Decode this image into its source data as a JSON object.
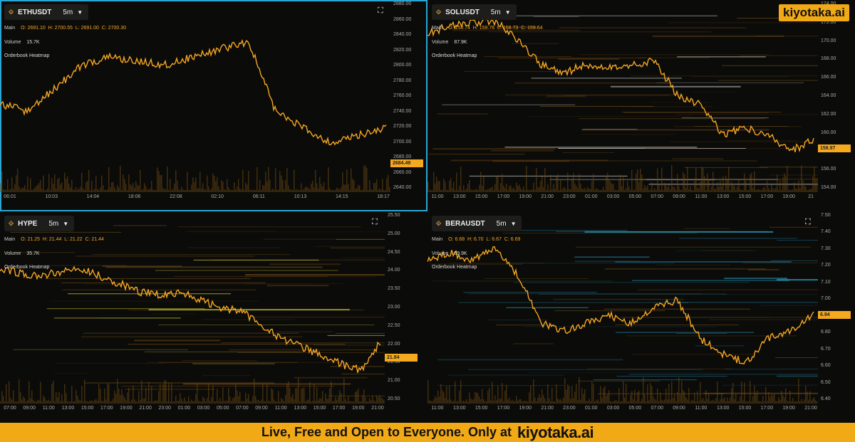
{
  "brand": {
    "name": "kiyotaka.ai",
    "accent": "#f2a916"
  },
  "banner": {
    "text": "Live, Free and Open to Everyone. Only at",
    "brand": "kiyotaka.ai"
  },
  "panels": [
    {
      "symbol": "ETHUSDT",
      "timeframe": "5m",
      "active": true,
      "main_label": "Main",
      "ohlc": {
        "o": "O: 2691.10",
        "h": "H: 2700.55",
        "l": "L: 2691.00",
        "c": "C: 2700.30"
      },
      "volume_label": "Volume",
      "volume_value": "15.7K",
      "overlay_label": "Orderbook Heatmap",
      "last_price": "2684.49",
      "y_ticks": [
        "2880.00",
        "2860.00",
        "2840.00",
        "2820.00",
        "2800.00",
        "2780.00",
        "2760.00",
        "2740.00",
        "2720.00",
        "2700.00",
        "2680.00",
        "2660.00",
        "2640.00"
      ],
      "x_ticks": [
        "06:01",
        "10:03",
        "14:04",
        "18:06",
        "22:08",
        "02:10",
        "06:11",
        "10:13",
        "14:15",
        "18:17"
      ]
    },
    {
      "symbol": "SOLUSDT",
      "timeframe": "5m",
      "active": false,
      "main_label": "Main",
      "ohlc": {
        "o": "O: 158.74",
        "h": "H: 159.76",
        "l": "L: 158.73",
        "c": "C: 159.64"
      },
      "volume_label": "Volume",
      "volume_value": "87.9K",
      "overlay_label": "Orderbook Heatmap",
      "last_price": "158.97",
      "y_ticks": [
        "174.00",
        "172.00",
        "170.00",
        "168.00",
        "166.00",
        "164.00",
        "162.00",
        "160.00",
        "158.00",
        "156.00",
        "154.00"
      ],
      "x_ticks": [
        "11:00",
        "13:00",
        "15:00",
        "17:00",
        "19:00",
        "21:00",
        "23:00",
        "01:00",
        "03:00",
        "05:00",
        "07:00",
        "09:00",
        "11:00",
        "13:00",
        "15:00",
        "17:00",
        "19:00",
        "21"
      ]
    },
    {
      "symbol": "HYPE",
      "timeframe": "5m",
      "active": false,
      "main_label": "Main",
      "ohlc": {
        "o": "O: 21.25",
        "h": "H: 21.44",
        "l": "L: 21.22",
        "c": "C: 21.44"
      },
      "volume_label": "Volume",
      "volume_value": "35.7K",
      "overlay_label": "Orderbook Heatmap",
      "last_price": "21.84",
      "y_ticks": [
        "25.50",
        "25.00",
        "24.50",
        "24.00",
        "23.50",
        "23.00",
        "22.50",
        "22.00",
        "21.50",
        "21.00",
        "20.50"
      ],
      "x_ticks": [
        "07:00",
        "09:00",
        "11:00",
        "13:00",
        "15:00",
        "17:00",
        "19:00",
        "21:00",
        "23:00",
        "01:00",
        "03:00",
        "05:00",
        "07:00",
        "09:00",
        "11:00",
        "13:00",
        "15:00",
        "17:00",
        "19:00",
        "21:00"
      ]
    },
    {
      "symbol": "BERAUSDT",
      "timeframe": "5m",
      "active": false,
      "main_label": "Main",
      "ohlc": {
        "o": "O: 6.68",
        "h": "H: 6.70",
        "l": "L: 6.67",
        "c": "C: 6.69"
      },
      "volume_label": "Volume",
      "volume_value": "69.9K",
      "overlay_label": "Orderbook Heatmap",
      "last_price": "6.94",
      "y_ticks": [
        "7.50",
        "7.40",
        "7.30",
        "7.20",
        "7.10",
        "7.00",
        "6.90",
        "6.80",
        "6.70",
        "6.60",
        "6.50",
        "6.40"
      ],
      "x_ticks": [
        "11:00",
        "13:00",
        "15:00",
        "17:00",
        "19:00",
        "21:00",
        "23:00",
        "01:00",
        "03:00",
        "05:00",
        "07:00",
        "09:00",
        "11:00",
        "13:00",
        "15:00",
        "17:00",
        "19:00",
        "21:00"
      ]
    }
  ]
}
